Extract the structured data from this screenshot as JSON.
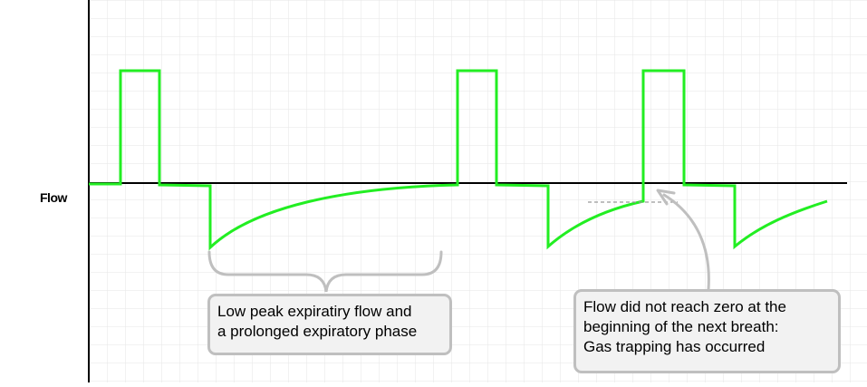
{
  "axis": {
    "y_label": "Flow"
  },
  "callouts": {
    "low_peak": {
      "lines": [
        "Low peak expiratiry flow and",
        "a prolonged expiratory phase"
      ]
    },
    "gas_trapping": {
      "lines": [
        "Flow did not reach zero at the",
        "beginning of the next breath:",
        "Gas trapping has occurred"
      ]
    }
  },
  "colors": {
    "waveform": "#22ee22",
    "axis": "#000000",
    "grid": "#e6e6e6",
    "annotation": "#bfbfbf",
    "callout_fill": "#f2f2f2"
  }
}
